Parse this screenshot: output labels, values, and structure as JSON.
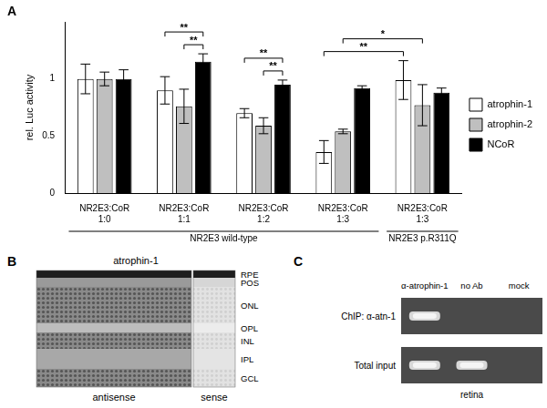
{
  "chart_data": {
    "type": "bar",
    "y_label": "rel. Luc activity",
    "categories": [
      "NR2E3:CoR 1:0",
      "NR2E3:CoR 1:1",
      "NR2E3:CoR 1:2",
      "NR2E3:CoR 1:3",
      "NR2E3:CoR 1:3"
    ],
    "series": [
      {
        "name": "atrophin-1",
        "color": "#ffffff",
        "values": [
          1,
          0.9,
          0.7,
          0.36,
          0.99
        ],
        "errors": [
          0.13,
          0.12,
          0.04,
          0.1,
          0.17
        ]
      },
      {
        "name": "atrophin-2",
        "color": "#bfbfbf",
        "values": [
          1,
          0.76,
          0.59,
          0.54,
          0.77
        ],
        "errors": [
          0.06,
          0.15,
          0.07,
          0.02,
          0.18
        ]
      },
      {
        "name": "NCoR",
        "color": "#000000",
        "values": [
          1,
          1.15,
          0.95,
          0.92,
          0.88
        ],
        "errors": [
          0.08,
          0.07,
          0.04,
          0.02,
          0.04
        ]
      }
    ],
    "ylim": [
      0,
      1.5
    ],
    "yticks": [
      0,
      0.5,
      1
    ],
    "grid": false,
    "legend": "right",
    "category_groups": [
      {
        "label": "NR2E3 wild-type",
        "categories": [
          0,
          3
        ]
      },
      {
        "label": "NR2E3 p.R311Q",
        "categories": [
          4,
          4
        ]
      }
    ],
    "significance": [
      {
        "from": [
          1,
          1
        ],
        "to": [
          1,
          2
        ],
        "label": "**"
      },
      {
        "from": [
          1,
          0
        ],
        "to": [
          1,
          2
        ],
        "label": "**"
      },
      {
        "from": [
          2,
          1
        ],
        "to": [
          2,
          2
        ],
        "label": "**"
      },
      {
        "from": [
          2,
          0
        ],
        "to": [
          2,
          2
        ],
        "label": "**"
      },
      {
        "from": [
          3,
          0
        ],
        "to": [
          4,
          0
        ],
        "label": "**"
      },
      {
        "from": [
          3,
          1
        ],
        "to": [
          4,
          1
        ],
        "label": "*"
      }
    ]
  },
  "panel_labels": [
    "A",
    "B",
    "C"
  ],
  "panel_b": {
    "title": "atrophin-1",
    "layers": [
      "RPE",
      "POS",
      "ONL",
      "OPL",
      "INL",
      "IPL",
      "GCL"
    ],
    "images": [
      "antisense",
      "sense"
    ]
  },
  "panel_c": {
    "columns": [
      "α-atrophin-1",
      "no Ab",
      "mock"
    ],
    "rows": [
      {
        "label": "ChIP: α-atn-1",
        "bands": [
          true,
          false,
          false
        ]
      },
      {
        "label": "Total input",
        "bands": [
          true,
          true,
          false
        ]
      }
    ],
    "tissue": "retina"
  }
}
